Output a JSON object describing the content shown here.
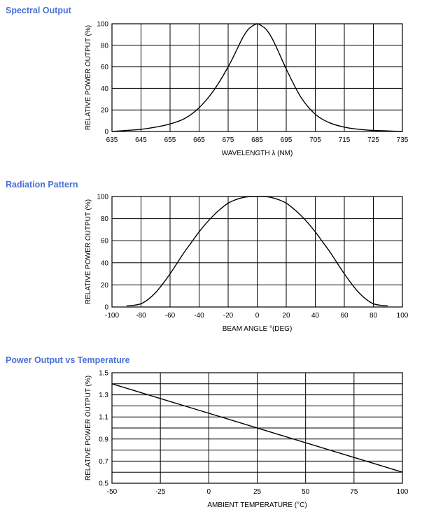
{
  "colors": {
    "title": "#4a6fd6",
    "grid": "#000000",
    "curve": "#000000"
  },
  "chart_data": [
    {
      "type": "line",
      "title": "Spectral Output",
      "xlabel": "WAVELENGTH  λ (NM)",
      "ylabel": "RELATIVE POWER OUTPUT (%)",
      "xlim": [
        635,
        735
      ],
      "ylim": [
        0,
        100
      ],
      "xticks": [
        635,
        645,
        655,
        665,
        675,
        685,
        695,
        705,
        715,
        725,
        735
      ],
      "xtick_labels": [
        "635",
        "645",
        "655",
        "665",
        "675",
        "685",
        "695",
        "705",
        "715",
        "725",
        "735"
      ],
      "yticks": [
        0,
        20,
        40,
        60,
        80,
        100
      ],
      "ytick_labels": [
        "0",
        "20",
        "40",
        "60",
        "80",
        "100"
      ],
      "grid": true,
      "series": [
        {
          "x": [
            635,
            640,
            645,
            650,
            655,
            660,
            665,
            670,
            675,
            678,
            680,
            682,
            684,
            685,
            686,
            688,
            690,
            692,
            695,
            700,
            705,
            710,
            715,
            720,
            725,
            730,
            735
          ],
          "y": [
            0,
            1,
            2,
            4,
            7,
            12,
            22,
            38,
            60,
            76,
            87,
            95,
            99,
            100,
            99,
            95,
            87,
            76,
            58,
            32,
            16,
            8,
            4,
            2,
            1,
            0.5,
            0
          ]
        }
      ]
    },
    {
      "type": "line",
      "title": "Radiation Pattern",
      "xlabel": "BEAM ANGLE °(DEG)",
      "ylabel": "RELATIVE POWER OUTPUT (%)",
      "xlim": [
        -100,
        100
      ],
      "ylim": [
        0,
        100
      ],
      "xticks": [
        -100,
        -80,
        -60,
        -40,
        -20,
        0,
        20,
        40,
        60,
        80,
        100
      ],
      "xtick_labels": [
        "-100",
        "-80",
        "-60",
        "-40",
        "-20",
        "0",
        "20",
        "40",
        "60",
        "80",
        "100"
      ],
      "yticks": [
        0,
        20,
        40,
        60,
        80,
        100
      ],
      "ytick_labels": [
        "0",
        "20",
        "40",
        "60",
        "80",
        "100"
      ],
      "grid": true,
      "series": [
        {
          "x": [
            -90,
            -85,
            -80,
            -75,
            -70,
            -65,
            -60,
            -55,
            -50,
            -45,
            -40,
            -35,
            -30,
            -25,
            -20,
            -15,
            -10,
            -5,
            0,
            5,
            10,
            15,
            20,
            25,
            30,
            35,
            40,
            45,
            50,
            55,
            60,
            65,
            70,
            75,
            80,
            85,
            90
          ],
          "y": [
            1,
            1.5,
            3,
            7,
            13,
            21,
            30,
            40,
            50,
            59,
            68,
            76,
            83,
            89,
            94,
            97,
            99,
            100,
            100,
            100,
            99,
            97,
            94,
            89,
            83,
            76,
            68,
            59,
            50,
            40,
            30,
            21,
            13,
            7,
            3,
            1.5,
            1
          ]
        }
      ]
    },
    {
      "type": "line",
      "title": "Power Output vs Temperature",
      "xlabel": "AMBIENT TEMPERATURE (°C)",
      "ylabel": "RELATIVE POWER OUTPUT (%)",
      "xlim": [
        -50,
        100
      ],
      "ylim": [
        0.5,
        1.5
      ],
      "xticks": [
        -50,
        -25,
        0,
        25,
        50,
        75,
        100
      ],
      "xtick_labels": [
        "-50",
        "-25",
        "0",
        "25",
        "50",
        "75",
        "100"
      ],
      "yticks": [
        0.5,
        0.7,
        0.9,
        1.1,
        1.3,
        1.5
      ],
      "ytick_labels": [
        "0.5",
        "0.7",
        "0.9",
        "1.1",
        "1.3",
        "1.5"
      ],
      "ygrid_step": 0.1,
      "grid": true,
      "series": [
        {
          "x": [
            -50,
            100
          ],
          "y": [
            1.4,
            0.6
          ]
        }
      ]
    }
  ]
}
